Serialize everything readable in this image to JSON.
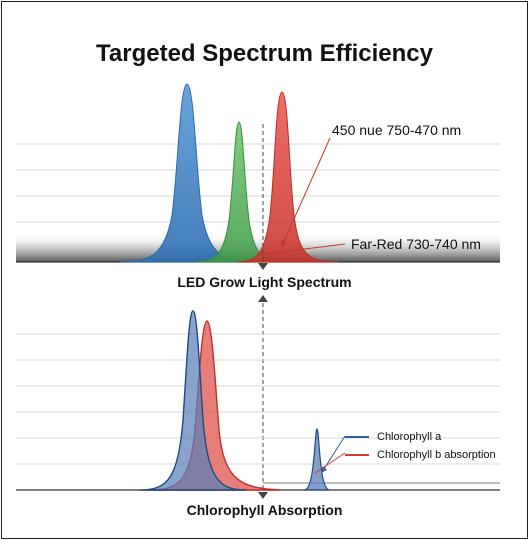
{
  "title": "Targeted Spectrum Efficiency",
  "top_panel": {
    "label": "LED Grow Light Spectrum",
    "annotation_main": "450 nue 750-470 nm",
    "annotation_far_red": "Far-Red 730-740 nm"
  },
  "bottom_panel": {
    "label": "Chlorophyll Absorption",
    "legend": [
      {
        "name": "Chlorophyll a",
        "color": "#2f5f9e"
      },
      {
        "name": "Chlorophyll b absorption",
        "color": "#d23a32"
      }
    ]
  },
  "colors": {
    "blue": "#3b7fc4",
    "green": "#4caf50",
    "red": "#e0403a",
    "navy": "#2f5f9e",
    "dark_red": "#d23a32",
    "annotation_arrow": "#c0392b"
  },
  "chart_data": [
    {
      "type": "area",
      "title": "LED Grow Light Spectrum",
      "series": [
        {
          "color": "#3b7fc4",
          "peak": 1.0
        },
        {
          "color": "#4caf50",
          "peak": 0.8
        },
        {
          "color": "#e0403a",
          "peak": 0.95
        }
      ]
    },
    {
      "type": "area",
      "title": "Chlorophyll Absorption",
      "series": [
        {
          "name": "Chlorophyll a",
          "color": "#2f5f9e",
          "peaks": [
            1.0,
            0.35
          ]
        },
        {
          "name": "Chlorophyll b absorption",
          "color": "#d23a32",
          "peaks": [
            0.95
          ]
        }
      ]
    }
  ]
}
